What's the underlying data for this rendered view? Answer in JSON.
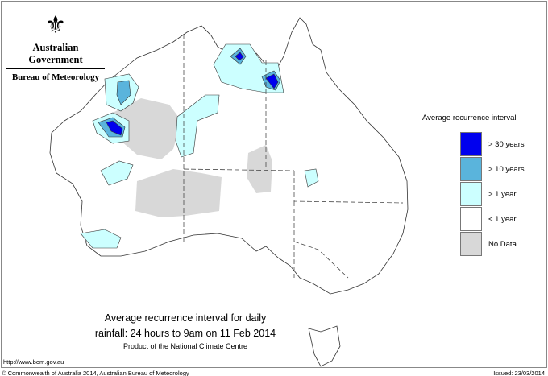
{
  "logo": {
    "government": "Australian Government",
    "bureau": "Bureau of Meteorology"
  },
  "legend": {
    "title": "Average recurrence interval",
    "items": [
      {
        "label": "> 30 years",
        "color": "#0000ee"
      },
      {
        "label": "> 10 years",
        "color": "#5ab4dc"
      },
      {
        "label": "> 1 year",
        "color": "#ccffff"
      },
      {
        "label": "< 1 year",
        "color": "#ffffff"
      },
      {
        "label": "No Data",
        "color": "#d8d8d8"
      }
    ]
  },
  "title": {
    "line1": "Average recurrence interval for daily",
    "line2": "rainfall: 24 hours to 9am on 11 Feb 2014",
    "line3": "Product of the National Climate Centre"
  },
  "footer": {
    "url": "http://www.bom.gov.au",
    "copyright": "© Commonwealth of Australia 2014, Australian Bureau of Meteorology",
    "issued": "Issued: 23/03/2014"
  }
}
